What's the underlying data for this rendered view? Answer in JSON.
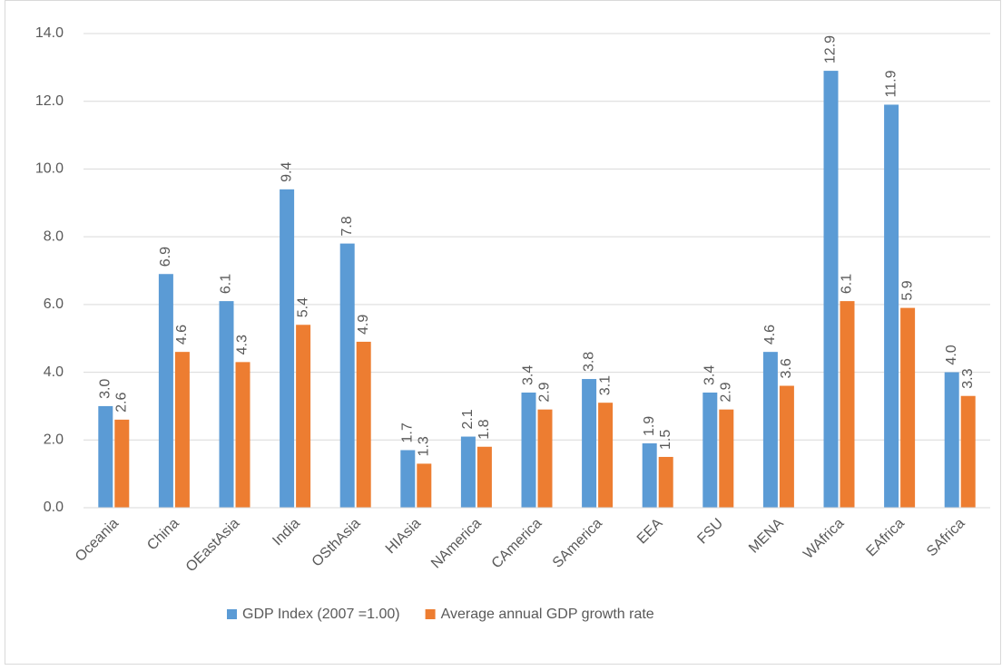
{
  "chart_data": {
    "type": "bar",
    "categories": [
      "Oceania",
      "China",
      "OEastAsia",
      "India",
      "OSthAsia",
      "HIAsia",
      "NAmerica",
      "CAmerica",
      "SAmerica",
      "EEA",
      "FSU",
      "MENA",
      "WAfrica",
      "EAfrica",
      "SAfrica"
    ],
    "series": [
      {
        "name": "GDP Index (2007 =1.00)",
        "color": "#5b9bd5",
        "values": [
          3.0,
          6.9,
          6.1,
          9.4,
          7.8,
          1.7,
          2.1,
          3.4,
          3.8,
          1.9,
          3.4,
          4.6,
          12.9,
          11.9,
          4.0
        ],
        "value_labels": [
          "3.0",
          "6.9",
          "6.1",
          "9.4",
          "7.8",
          "1.7",
          "2.1",
          "3.4",
          "3.8",
          "1.9",
          "3.4",
          "4.6",
          "12.9",
          "11.9",
          "4.0"
        ]
      },
      {
        "name": "Average annual GDP growth rate",
        "color": "#ed7d31",
        "values": [
          2.6,
          4.6,
          4.3,
          5.4,
          4.9,
          1.3,
          1.8,
          2.9,
          3.1,
          1.5,
          2.9,
          3.6,
          6.1,
          5.9,
          3.3
        ],
        "value_labels": [
          "2.6",
          "4.6",
          "4.3",
          "5.4",
          "4.9",
          "1.3",
          "1.8",
          "2.9",
          "3.1",
          "1.5",
          "2.9",
          "3.6",
          "6.1",
          "5.9",
          "3.3"
        ]
      }
    ],
    "ylim": [
      0,
      14
    ],
    "yticks": [
      {
        "value": 0,
        "label": "0.0"
      },
      {
        "value": 2,
        "label": "2.0"
      },
      {
        "value": 4,
        "label": "4.0"
      },
      {
        "value": 6,
        "label": "6.0"
      },
      {
        "value": 8,
        "label": "8.0"
      },
      {
        "value": 10,
        "label": "10.0"
      },
      {
        "value": 12,
        "label": "12.0"
      },
      {
        "value": 14,
        "label": "14.0"
      }
    ],
    "grid": true,
    "legend": "bottom"
  }
}
